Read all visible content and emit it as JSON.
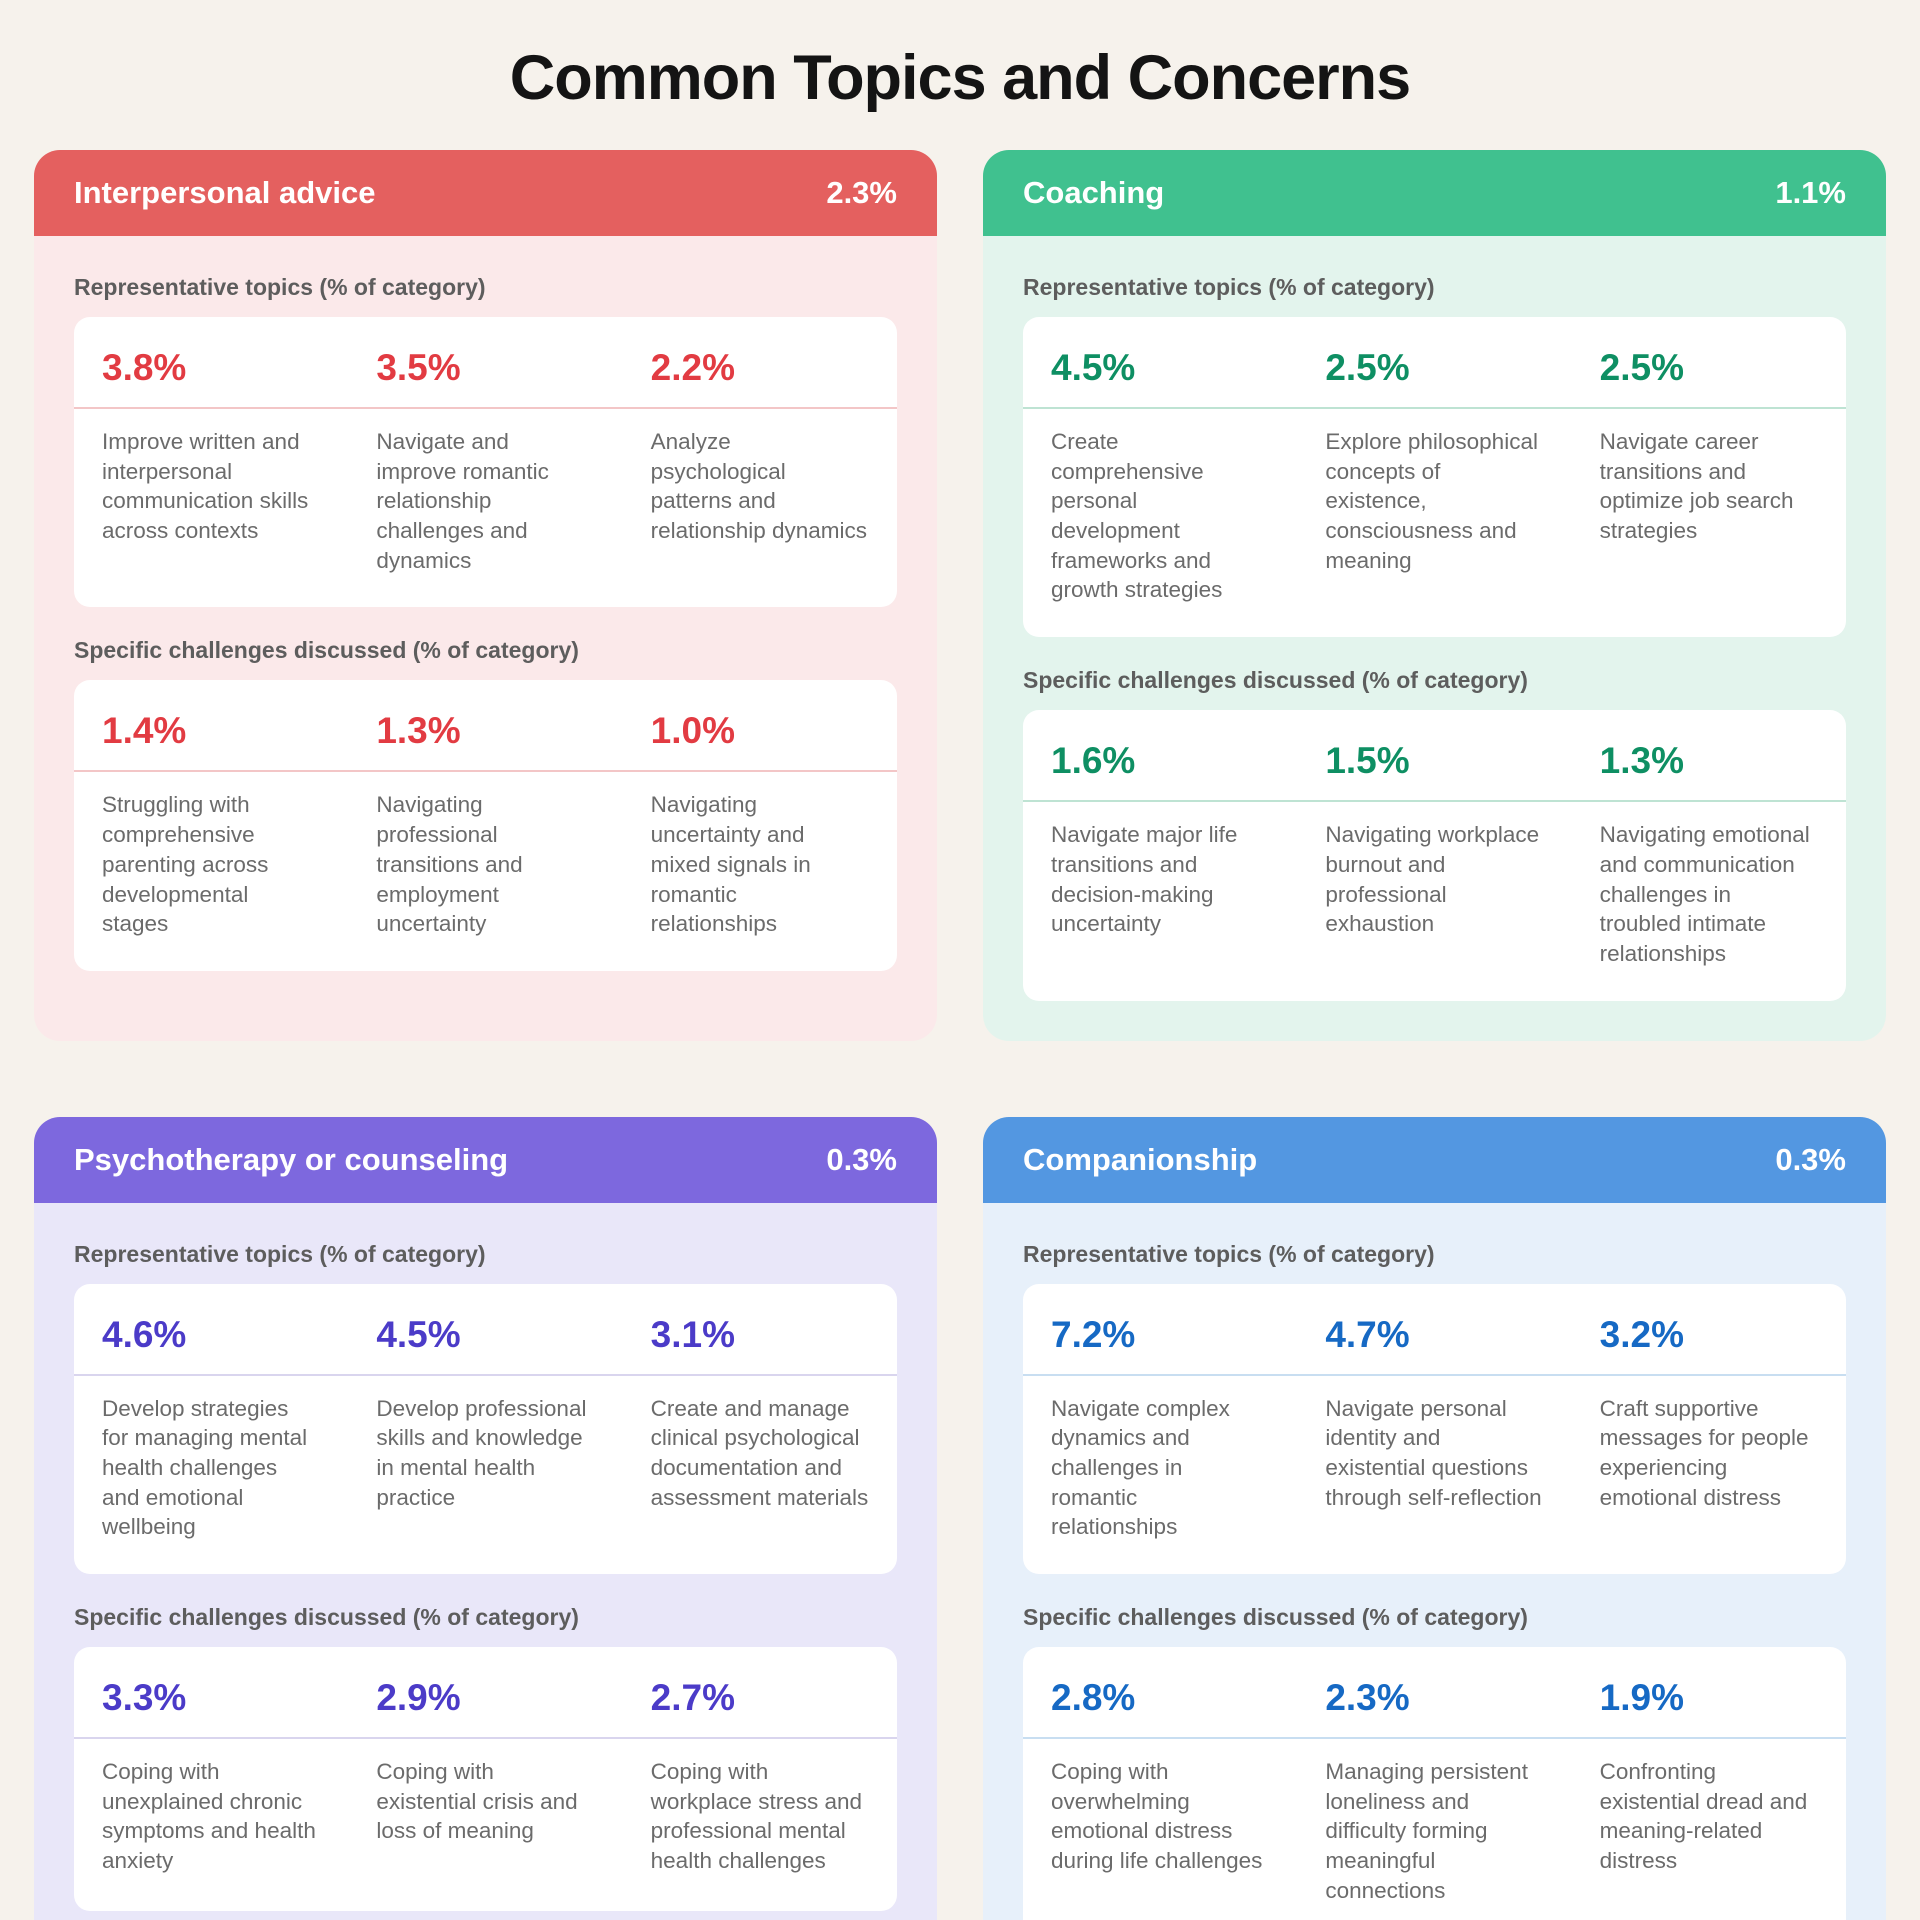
{
  "title": "Common Topics and Concerns",
  "labels": {
    "topics": "Representative topics (% of category)",
    "challenges": "Specific challenges discussed (% of category)"
  },
  "cards": [
    {
      "name": "Interpersonal advice",
      "share": "2.3%",
      "colors": {
        "header": "#E4605F",
        "body": "#FBE9EA",
        "pct": "#E23B42",
        "divider": "#F3C6C7"
      },
      "topics": [
        {
          "pct": "3.8%",
          "text": "Improve written and interpersonal communication skills across contexts"
        },
        {
          "pct": "3.5%",
          "text": "Navigate and improve romantic relationship challenges and dynamics"
        },
        {
          "pct": "2.2%",
          "text": "Analyze psychological patterns and relationship dynamics"
        }
      ],
      "challenges": [
        {
          "pct": "1.4%",
          "text": "Struggling with comprehensive parenting across developmental stages"
        },
        {
          "pct": "1.3%",
          "text": "Navigating professional transitions and employment uncertainty"
        },
        {
          "pct": "1.0%",
          "text": "Navigating uncertainty and mixed signals in romantic relationships"
        }
      ]
    },
    {
      "name": "Coaching",
      "share": "1.1%",
      "colors": {
        "header": "#40C18F",
        "body": "#E3F4ED",
        "pct": "#0E8F63",
        "divider": "#BEE3D3"
      },
      "topics": [
        {
          "pct": "4.5%",
          "text": "Create comprehensive personal development frameworks and growth strategies"
        },
        {
          "pct": "2.5%",
          "text": "Explore philosophical concepts of existence, consciousness and meaning"
        },
        {
          "pct": "2.5%",
          "text": "Navigate career transitions and optimize job search strategies"
        }
      ],
      "challenges": [
        {
          "pct": "1.6%",
          "text": "Navigate major life transitions and decision-making uncertainty"
        },
        {
          "pct": "1.5%",
          "text": "Navigating workplace burnout and professional exhaustion"
        },
        {
          "pct": "1.3%",
          "text": "Navigating emotional and communication challenges in troubled intimate relationships"
        }
      ]
    },
    {
      "name": "Psychotherapy or counseling",
      "share": "0.3%",
      "colors": {
        "header": "#7D68DE",
        "body": "#E9E7F9",
        "pct": "#4B3BC8",
        "divider": "#D9D5EE"
      },
      "topics": [
        {
          "pct": "4.6%",
          "text": "Develop strategies for managing mental health challenges and emotional wellbeing"
        },
        {
          "pct": "4.5%",
          "text": "Develop professional skills and knowledge in mental health practice"
        },
        {
          "pct": "3.1%",
          "text": "Create and manage clinical psychological documentation and assessment materials"
        }
      ],
      "challenges": [
        {
          "pct": "3.3%",
          "text": "Coping with unexplained chronic symptoms and health anxiety"
        },
        {
          "pct": "2.9%",
          "text": "Coping with existential crisis and loss of meaning"
        },
        {
          "pct": "2.7%",
          "text": "Coping with workplace stress and professional mental health challenges"
        }
      ]
    },
    {
      "name": "Companionship",
      "share": "0.3%",
      "colors": {
        "header": "#5397E1",
        "body": "#E7F0FA",
        "pct": "#1669C4",
        "divider": "#C8DEF1"
      },
      "topics": [
        {
          "pct": "7.2%",
          "text": "Navigate complex dynamics and challenges in romantic relationships"
        },
        {
          "pct": "4.7%",
          "text": "Navigate personal identity and existential questions through self-reflection"
        },
        {
          "pct": "3.2%",
          "text": "Craft supportive messages for people experiencing emotional distress"
        }
      ],
      "challenges": [
        {
          "pct": "2.8%",
          "text": "Coping with overwhelming emotional distress during life challenges"
        },
        {
          "pct": "2.3%",
          "text": "Managing persistent loneliness and difficulty forming meaningful connections"
        },
        {
          "pct": "1.9%",
          "text": "Confronting existential dread and meaning-related distress"
        }
      ]
    }
  ],
  "chart_data": {
    "type": "table",
    "title": "Common Topics and Concerns",
    "legend_position": "none",
    "categories": [
      {
        "label": "Interpersonal advice",
        "share_pct": 2.3,
        "representative_topics": [
          {
            "pct": 3.8,
            "topic": "Improve written and interpersonal communication skills across contexts"
          },
          {
            "pct": 3.5,
            "topic": "Navigate and improve romantic relationship challenges and dynamics"
          },
          {
            "pct": 2.2,
            "topic": "Analyze psychological patterns and relationship dynamics"
          }
        ],
        "specific_challenges": [
          {
            "pct": 1.4,
            "challenge": "Struggling with comprehensive parenting across developmental stages"
          },
          {
            "pct": 1.3,
            "challenge": "Navigating professional transitions and employment uncertainty"
          },
          {
            "pct": 1.0,
            "challenge": "Navigating uncertainty and mixed signals in romantic relationships"
          }
        ]
      },
      {
        "label": "Coaching",
        "share_pct": 1.1,
        "representative_topics": [
          {
            "pct": 4.5,
            "topic": "Create comprehensive personal development frameworks and growth strategies"
          },
          {
            "pct": 2.5,
            "topic": "Explore philosophical concepts of existence, consciousness and meaning"
          },
          {
            "pct": 2.5,
            "topic": "Navigate career transitions and optimize job search strategies"
          }
        ],
        "specific_challenges": [
          {
            "pct": 1.6,
            "challenge": "Navigate major life transitions and decision-making uncertainty"
          },
          {
            "pct": 1.5,
            "challenge": "Navigating workplace burnout and professional exhaustion"
          },
          {
            "pct": 1.3,
            "challenge": "Navigating emotional and communication challenges in troubled intimate relationships"
          }
        ]
      },
      {
        "label": "Psychotherapy or counseling",
        "share_pct": 0.3,
        "representative_topics": [
          {
            "pct": 4.6,
            "topic": "Develop strategies for managing mental health challenges and emotional wellbeing"
          },
          {
            "pct": 4.5,
            "topic": "Develop professional skills and knowledge in mental health practice"
          },
          {
            "pct": 3.1,
            "topic": "Create and manage clinical psychological documentation and assessment materials"
          }
        ],
        "specific_challenges": [
          {
            "pct": 3.3,
            "challenge": "Coping with unexplained chronic symptoms and health anxiety"
          },
          {
            "pct": 2.9,
            "challenge": "Coping with existential crisis and loss of meaning"
          },
          {
            "pct": 2.7,
            "challenge": "Coping with workplace stress and professional mental health challenges"
          }
        ]
      },
      {
        "label": "Companionship",
        "share_pct": 0.3,
        "representative_topics": [
          {
            "pct": 7.2,
            "topic": "Navigate complex dynamics and challenges in romantic relationships"
          },
          {
            "pct": 4.7,
            "topic": "Navigate personal identity and existential questions through self-reflection"
          },
          {
            "pct": 3.2,
            "topic": "Craft supportive messages for people experiencing emotional distress"
          }
        ],
        "specific_challenges": [
          {
            "pct": 2.8,
            "challenge": "Coping with overwhelming emotional distress during life challenges"
          },
          {
            "pct": 2.3,
            "challenge": "Managing persistent loneliness and difficulty forming meaningful connections"
          },
          {
            "pct": 1.9,
            "challenge": "Confronting existential dread and meaning-related distress"
          }
        ]
      }
    ]
  }
}
